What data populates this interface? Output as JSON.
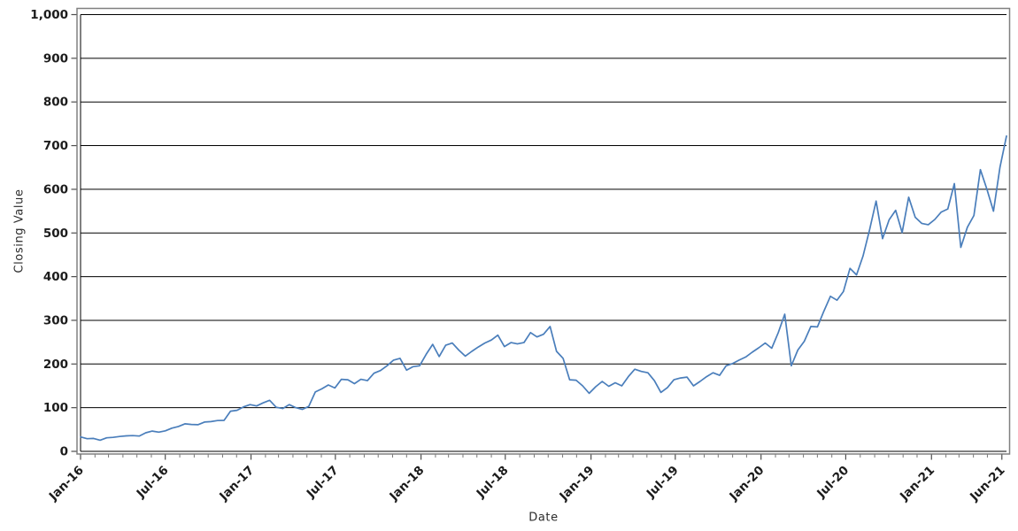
{
  "chart_data": {
    "type": "line",
    "title": "",
    "xlabel": "Date",
    "ylabel": "Closing Value",
    "ylim": [
      0,
      1000
    ],
    "grid": {
      "horizontal": true,
      "vertical": false,
      "color": "#000000"
    },
    "legend": "none",
    "frame_color": "#808080",
    "y_ticks": [
      {
        "value": 0,
        "label": "0"
      },
      {
        "value": 100,
        "label": "100"
      },
      {
        "value": 200,
        "label": "200"
      },
      {
        "value": 300,
        "label": "300"
      },
      {
        "value": 400,
        "label": "400"
      },
      {
        "value": 500,
        "label": "500"
      },
      {
        "value": 600,
        "label": "600"
      },
      {
        "value": 700,
        "label": "700"
      },
      {
        "value": 800,
        "label": "800"
      },
      {
        "value": 900,
        "label": "900"
      },
      {
        "value": 1000,
        "label": "1,000"
      }
    ],
    "x_ticks": [
      {
        "label": "Jan-16",
        "f": 0.0
      },
      {
        "label": "Jul-16",
        "f": 0.0915
      },
      {
        "label": "Jan-17",
        "f": 0.1841
      },
      {
        "label": "Jul-17",
        "f": 0.2752
      },
      {
        "label": "Jan-18",
        "f": 0.3677
      },
      {
        "label": "Jul-18",
        "f": 0.4587
      },
      {
        "label": "Jan-19",
        "f": 0.5513
      },
      {
        "label": "Jul-19",
        "f": 0.6423
      },
      {
        "label": "Jan-20",
        "f": 0.7349
      },
      {
        "label": "Jul-20",
        "f": 0.8264
      },
      {
        "label": "Jan-21",
        "f": 0.919
      },
      {
        "label": "Jun-21",
        "f": 0.995
      }
    ],
    "series": [
      {
        "name": "Closing Value",
        "color": "#4a7ebb",
        "values": [
          33,
          29,
          29.5,
          25.5,
          31,
          32,
          34,
          35.5,
          36,
          35,
          42.5,
          46.5,
          44,
          47,
          53,
          57,
          63,
          61.5,
          61,
          67,
          68,
          70.5,
          71,
          92,
          94,
          102,
          107,
          104,
          111,
          117,
          101,
          98,
          107,
          100,
          96,
          103,
          136,
          143,
          152,
          145,
          165,
          164,
          155,
          165,
          162,
          179,
          185,
          196,
          209,
          213,
          186,
          194,
          196,
          222,
          245,
          217,
          243,
          248,
          232,
          218,
          229,
          239,
          248,
          255,
          266,
          240,
          249,
          246,
          249,
          272,
          262,
          268,
          286,
          229,
          213,
          164,
          163,
          150,
          133,
          148,
          160,
          149,
          157,
          150,
          171,
          188,
          183,
          180,
          162,
          135,
          146,
          164,
          168,
          170,
          150,
          160,
          171,
          180,
          174,
          196,
          201,
          209,
          216,
          227,
          237,
          248,
          236,
          272,
          314,
          196,
          232,
          252,
          286,
          285,
          321,
          355,
          346,
          366,
          419,
          404,
          447,
          507,
          573,
          487,
          530,
          552,
          501,
          582,
          536,
          522,
          519,
          531,
          548,
          555,
          613,
          467,
          513,
          540,
          645,
          600,
          550,
          650,
          722
        ]
      }
    ]
  }
}
